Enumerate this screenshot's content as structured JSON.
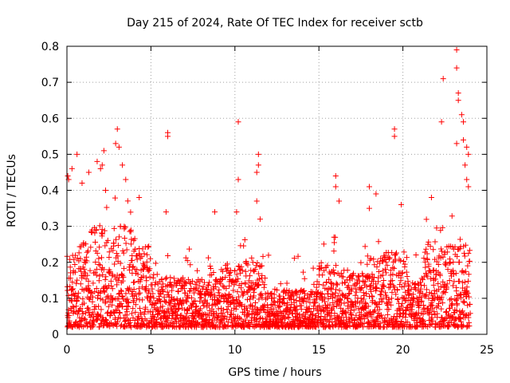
{
  "chart_data": {
    "type": "scatter",
    "title": "Day 215 of 2024, Rate Of TEC Index for receiver sctb",
    "xlabel": "GPS time / hours",
    "ylabel": "ROTI / TECUs",
    "xlim": [
      0,
      25
    ],
    "ylim": [
      0,
      0.8
    ],
    "xticks": [
      0,
      5,
      10,
      15,
      20,
      25
    ],
    "xtick_labels": [
      "0",
      "5",
      "10",
      "15",
      "20",
      "25"
    ],
    "yticks": [
      0,
      0.1,
      0.2,
      0.3,
      0.4,
      0.5,
      0.6,
      0.7,
      0.8
    ],
    "ytick_labels": [
      "0",
      "0.1",
      "0.2",
      "0.3",
      "0.4",
      "0.5",
      "0.6",
      "0.7",
      "0.8"
    ],
    "grid": true,
    "marker": "+",
    "color": "#ff0000",
    "series": [
      {
        "name": "ROTI",
        "points": [
          [
            0.05,
            0.44
          ],
          [
            0.1,
            0.43
          ],
          [
            0.3,
            0.46
          ],
          [
            0.6,
            0.5
          ],
          [
            0.9,
            0.42
          ],
          [
            1.3,
            0.45
          ],
          [
            1.8,
            0.48
          ],
          [
            2.0,
            0.46
          ],
          [
            2.1,
            0.47
          ],
          [
            2.2,
            0.51
          ],
          [
            2.3,
            0.4
          ],
          [
            2.9,
            0.53
          ],
          [
            3.0,
            0.57
          ],
          [
            3.1,
            0.52
          ],
          [
            3.3,
            0.47
          ],
          [
            3.5,
            0.43
          ],
          [
            4.3,
            0.38
          ],
          [
            6.0,
            0.56
          ],
          [
            6.0,
            0.55
          ],
          [
            5.9,
            0.34
          ],
          [
            8.8,
            0.34
          ],
          [
            10.2,
            0.59
          ],
          [
            10.2,
            0.43
          ],
          [
            10.1,
            0.34
          ],
          [
            11.4,
            0.5
          ],
          [
            11.4,
            0.47
          ],
          [
            11.3,
            0.45
          ],
          [
            11.3,
            0.37
          ],
          [
            11.5,
            0.32
          ],
          [
            16.0,
            0.44
          ],
          [
            16.0,
            0.41
          ],
          [
            16.2,
            0.37
          ],
          [
            18.0,
            0.41
          ],
          [
            18.4,
            0.39
          ],
          [
            18.0,
            0.35
          ],
          [
            19.5,
            0.57
          ],
          [
            19.5,
            0.55
          ],
          [
            19.9,
            0.36
          ],
          [
            21.7,
            0.38
          ],
          [
            22.4,
            0.71
          ],
          [
            22.3,
            0.59
          ],
          [
            23.2,
            0.79
          ],
          [
            23.2,
            0.74
          ],
          [
            23.3,
            0.67
          ],
          [
            23.3,
            0.65
          ],
          [
            23.5,
            0.61
          ],
          [
            23.6,
            0.59
          ],
          [
            23.2,
            0.53
          ],
          [
            23.6,
            0.54
          ],
          [
            23.8,
            0.52
          ],
          [
            23.9,
            0.5
          ],
          [
            23.7,
            0.47
          ],
          [
            23.8,
            0.43
          ],
          [
            23.9,
            0.41
          ]
        ]
      }
    ]
  }
}
